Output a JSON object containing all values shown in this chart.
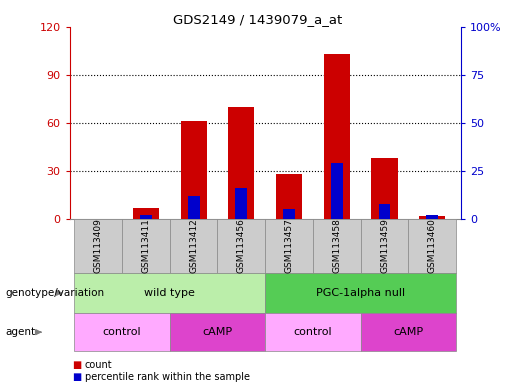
{
  "title": "GDS2149 / 1439079_a_at",
  "samples": [
    "GSM113409",
    "GSM113411",
    "GSM113412",
    "GSM113456",
    "GSM113457",
    "GSM113458",
    "GSM113459",
    "GSM113460"
  ],
  "count_values": [
    0,
    7,
    61,
    70,
    28,
    103,
    38,
    2
  ],
  "percentile_values": [
    0,
    2,
    12,
    16,
    5,
    29,
    8,
    2
  ],
  "ylim_left": [
    0,
    120
  ],
  "yticks_left": [
    0,
    30,
    60,
    90,
    120
  ],
  "ylim_right": [
    0,
    100
  ],
  "yticks_right": [
    0,
    25,
    50,
    75,
    100
  ],
  "count_color": "#cc0000",
  "percentile_color": "#0000cc",
  "bar_width": 0.55,
  "genotype_groups": [
    {
      "label": "wild type",
      "start": 0,
      "end": 4,
      "color": "#bbeeaa"
    },
    {
      "label": "PGC-1alpha null",
      "start": 4,
      "end": 8,
      "color": "#55cc55"
    }
  ],
  "agent_groups": [
    {
      "label": "control",
      "start": 0,
      "end": 2,
      "color": "#ffaaff"
    },
    {
      "label": "cAMP",
      "start": 2,
      "end": 4,
      "color": "#dd44cc"
    },
    {
      "label": "control",
      "start": 4,
      "end": 6,
      "color": "#ffaaff"
    },
    {
      "label": "cAMP",
      "start": 6,
      "end": 8,
      "color": "#dd44cc"
    }
  ],
  "legend_count_label": "count",
  "legend_percentile_label": "percentile rank within the sample",
  "genotype_label": "genotype/variation",
  "agent_label": "agent",
  "background_color": "#ffffff",
  "left_axis_color": "#cc0000",
  "right_axis_color": "#0000cc",
  "tick_label_bg": "#cccccc",
  "tick_label_edge": "#888888"
}
